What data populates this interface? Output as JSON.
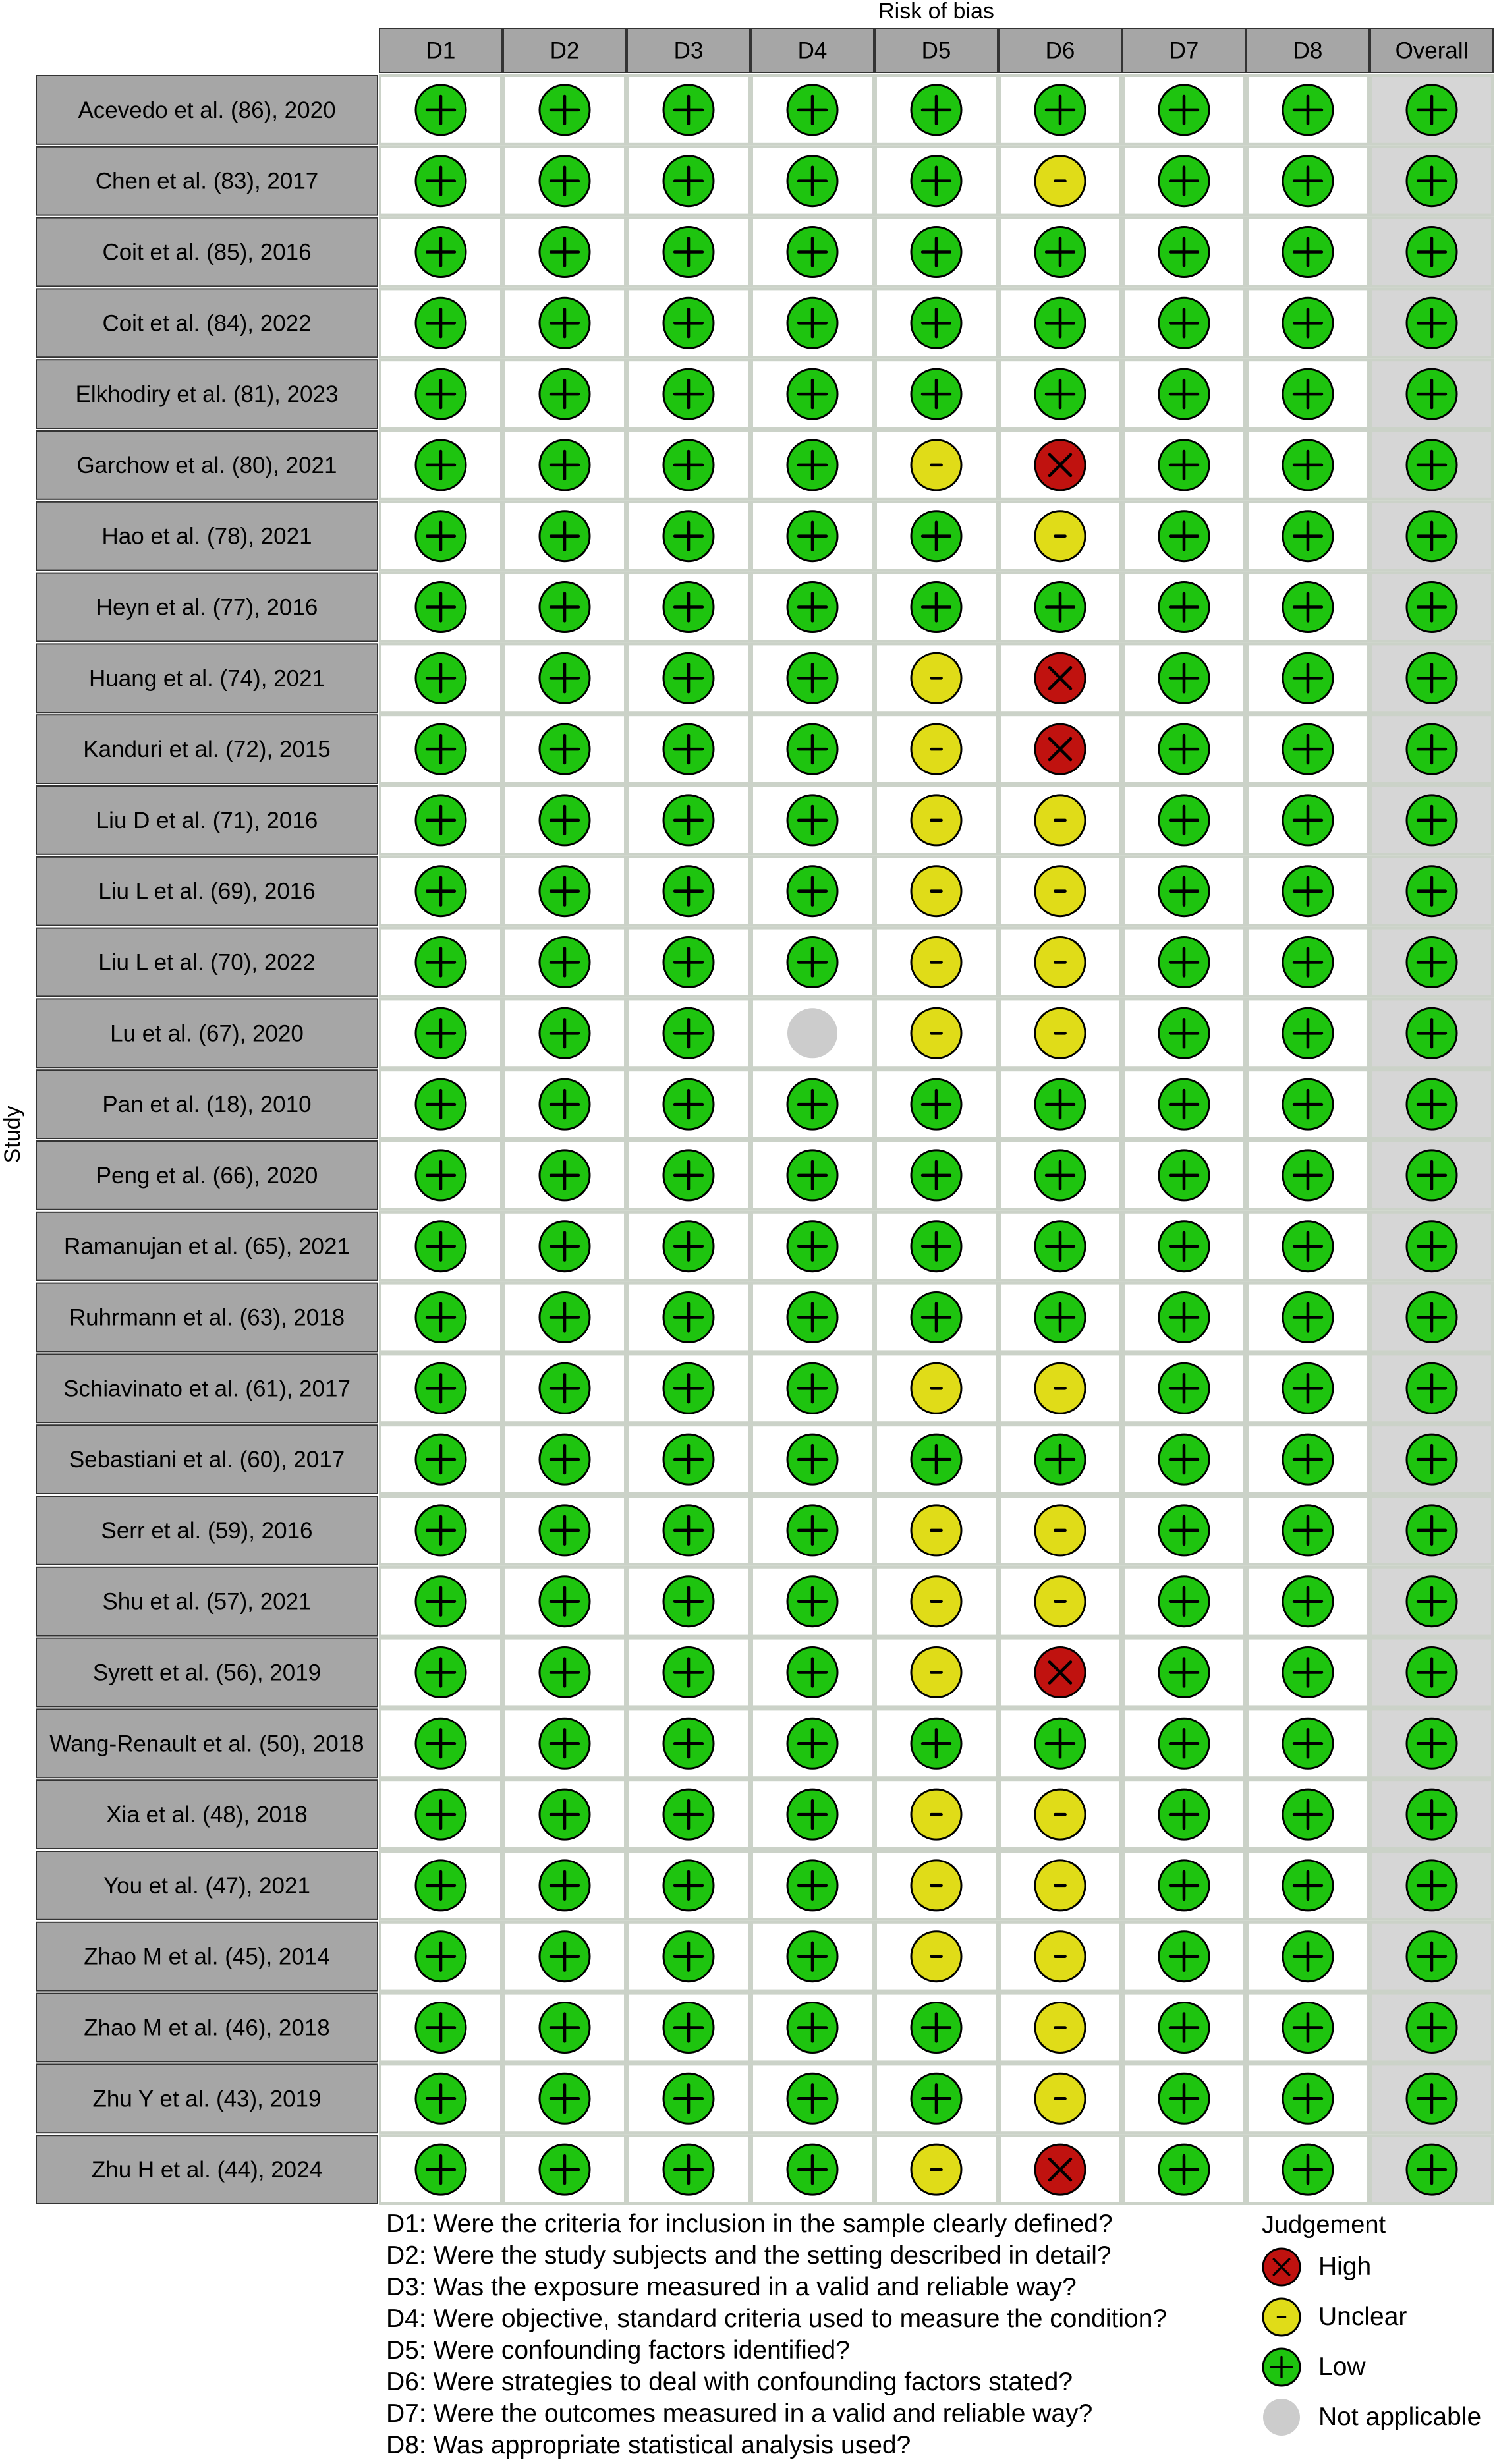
{
  "chart_data": {
    "type": "table",
    "title": "Risk of bias",
    "ylabel": "Study",
    "domains": [
      "D1",
      "D2",
      "D3",
      "D4",
      "D5",
      "D6",
      "D7",
      "D8",
      "Overall"
    ],
    "studies": [
      "Acevedo et al. (86), 2020",
      "Chen et al. (83), 2017",
      "Coit et al. (85), 2016",
      "Coit et al. (84), 2022",
      "Elkhodiry et al. (81), 2023",
      "Garchow et al. (80), 2021",
      "Hao et al. (78), 2021",
      "Heyn et al. (77), 2016",
      "Huang et al. (74), 2021",
      "Kanduri et al. (72), 2015",
      "Liu D et al. (71), 2016",
      "Liu L et al. (69), 2016",
      "Liu L et al. (70), 2022",
      "Lu et al. (67), 2020",
      "Pan et al. (18), 2010",
      "Peng et al. (66), 2020",
      "Ramanujan et al. (65), 2021",
      "Ruhrmann et al. (63), 2018",
      "Schiavinato et al. (61), 2017",
      "Sebastiani et al. (60), 2017",
      "Serr et al. (59), 2016",
      "Shu et al. (57), 2021",
      "Syrett et al. (56), 2019",
      "Wang-Renault et al. (50), 2018",
      "Xia et al. (48), 2018",
      "You et al. (47), 2021",
      "Zhao M et al. (45), 2014",
      "Zhao M et al. (46), 2018",
      "Zhu Y et al. (43), 2019",
      "Zhu H et al. (44), 2024"
    ],
    "judgements": [
      [
        "Low",
        "Low",
        "Low",
        "Low",
        "Low",
        "Low",
        "Low",
        "Low",
        "Low"
      ],
      [
        "Low",
        "Low",
        "Low",
        "Low",
        "Low",
        "Unclear",
        "Low",
        "Low",
        "Low"
      ],
      [
        "Low",
        "Low",
        "Low",
        "Low",
        "Low",
        "Low",
        "Low",
        "Low",
        "Low"
      ],
      [
        "Low",
        "Low",
        "Low",
        "Low",
        "Low",
        "Low",
        "Low",
        "Low",
        "Low"
      ],
      [
        "Low",
        "Low",
        "Low",
        "Low",
        "Low",
        "Low",
        "Low",
        "Low",
        "Low"
      ],
      [
        "Low",
        "Low",
        "Low",
        "Low",
        "Unclear",
        "High",
        "Low",
        "Low",
        "Low"
      ],
      [
        "Low",
        "Low",
        "Low",
        "Low",
        "Low",
        "Unclear",
        "Low",
        "Low",
        "Low"
      ],
      [
        "Low",
        "Low",
        "Low",
        "Low",
        "Low",
        "Low",
        "Low",
        "Low",
        "Low"
      ],
      [
        "Low",
        "Low",
        "Low",
        "Low",
        "Unclear",
        "High",
        "Low",
        "Low",
        "Low"
      ],
      [
        "Low",
        "Low",
        "Low",
        "Low",
        "Unclear",
        "High",
        "Low",
        "Low",
        "Low"
      ],
      [
        "Low",
        "Low",
        "Low",
        "Low",
        "Unclear",
        "Unclear",
        "Low",
        "Low",
        "Low"
      ],
      [
        "Low",
        "Low",
        "Low",
        "Low",
        "Unclear",
        "Unclear",
        "Low",
        "Low",
        "Low"
      ],
      [
        "Low",
        "Low",
        "Low",
        "Low",
        "Unclear",
        "Unclear",
        "Low",
        "Low",
        "Low"
      ],
      [
        "Low",
        "Low",
        "Low",
        "Not applicable",
        "Unclear",
        "Unclear",
        "Low",
        "Low",
        "Low"
      ],
      [
        "Low",
        "Low",
        "Low",
        "Low",
        "Low",
        "Low",
        "Low",
        "Low",
        "Low"
      ],
      [
        "Low",
        "Low",
        "Low",
        "Low",
        "Low",
        "Low",
        "Low",
        "Low",
        "Low"
      ],
      [
        "Low",
        "Low",
        "Low",
        "Low",
        "Low",
        "Low",
        "Low",
        "Low",
        "Low"
      ],
      [
        "Low",
        "Low",
        "Low",
        "Low",
        "Low",
        "Low",
        "Low",
        "Low",
        "Low"
      ],
      [
        "Low",
        "Low",
        "Low",
        "Low",
        "Unclear",
        "Unclear",
        "Low",
        "Low",
        "Low"
      ],
      [
        "Low",
        "Low",
        "Low",
        "Low",
        "Low",
        "Low",
        "Low",
        "Low",
        "Low"
      ],
      [
        "Low",
        "Low",
        "Low",
        "Low",
        "Unclear",
        "Unclear",
        "Low",
        "Low",
        "Low"
      ],
      [
        "Low",
        "Low",
        "Low",
        "Low",
        "Unclear",
        "Unclear",
        "Low",
        "Low",
        "Low"
      ],
      [
        "Low",
        "Low",
        "Low",
        "Low",
        "Unclear",
        "High",
        "Low",
        "Low",
        "Low"
      ],
      [
        "Low",
        "Low",
        "Low",
        "Low",
        "Low",
        "Low",
        "Low",
        "Low",
        "Low"
      ],
      [
        "Low",
        "Low",
        "Low",
        "Low",
        "Unclear",
        "Unclear",
        "Low",
        "Low",
        "Low"
      ],
      [
        "Low",
        "Low",
        "Low",
        "Low",
        "Unclear",
        "Unclear",
        "Low",
        "Low",
        "Low"
      ],
      [
        "Low",
        "Low",
        "Low",
        "Low",
        "Unclear",
        "Unclear",
        "Low",
        "Low",
        "Low"
      ],
      [
        "Low",
        "Low",
        "Low",
        "Low",
        "Low",
        "Unclear",
        "Low",
        "Low",
        "Low"
      ],
      [
        "Low",
        "Low",
        "Low",
        "Low",
        "Low",
        "Unclear",
        "Low",
        "Low",
        "Low"
      ],
      [
        "Low",
        "Low",
        "Low",
        "Low",
        "Unclear",
        "High",
        "Low",
        "Low",
        "Low"
      ]
    ],
    "domain_descriptions": [
      "D1: Were the criteria for inclusion in the sample clearly defined?",
      "D2: Were the study subjects and the setting described in detail?",
      "D3: Was the exposure measured in a valid and reliable way?",
      "D4: Were objective, standard criteria used to measure the condition?",
      "D5: Were confounding factors identified?",
      "D6: Were strategies to deal with confounding factors stated?",
      "D7: Were the outcomes measured in a valid and reliable way?",
      "D8: Was appropriate statistical analysis used?"
    ],
    "legend": {
      "title": "Judgement",
      "placement": "bottom-right",
      "items": [
        {
          "label": "High",
          "symbol": "X",
          "color": "#c0120f"
        },
        {
          "label": "Unclear",
          "symbol": "-",
          "color": "#e0dc18"
        },
        {
          "label": "Low",
          "symbol": "+",
          "color": "#1ec40f"
        },
        {
          "label": "Not applicable",
          "symbol": "",
          "color": "#cccccc"
        }
      ]
    },
    "colors": {
      "header_fill": "#a6a6a6",
      "study_fill": "#a6a6a6",
      "overall_fill": "#d6d6d6",
      "grid_line": "#cbd2c8"
    }
  }
}
